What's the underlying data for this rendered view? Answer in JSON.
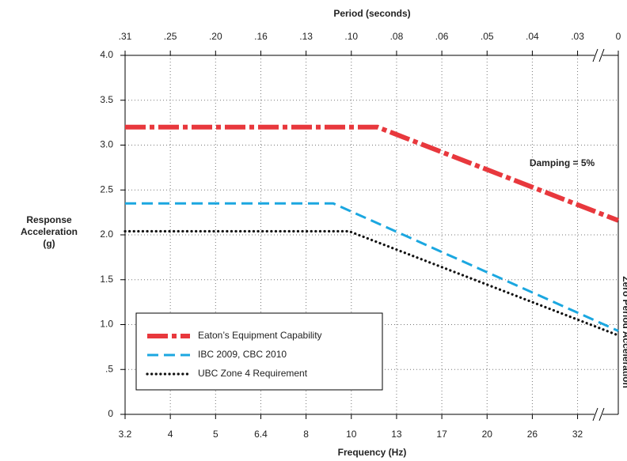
{
  "chart_data": {
    "type": "line",
    "top_axis_label": "Period (seconds)",
    "x_label": "Frequency (Hz)",
    "y_label_lines": [
      "Response",
      "Acceleration",
      "(g)"
    ],
    "annotation": "Damping = 5%",
    "right_axis_label": "Zero Period Acceleration",
    "xlim": [
      0,
      10.9
    ],
    "xticks": [
      {
        "value": 0,
        "label": "3.2"
      },
      {
        "value": 1,
        "label": "4"
      },
      {
        "value": 2,
        "label": "5"
      },
      {
        "value": 3,
        "label": "6.4"
      },
      {
        "value": 4,
        "label": "8"
      },
      {
        "value": 5,
        "label": "10"
      },
      {
        "value": 6,
        "label": "13"
      },
      {
        "value": 7,
        "label": "17"
      },
      {
        "value": 8,
        "label": "20"
      },
      {
        "value": 9,
        "label": "26"
      },
      {
        "value": 10,
        "label": "32"
      }
    ],
    "x2ticks": [
      {
        "value": 0,
        "label": ".31"
      },
      {
        "value": 1,
        "label": ".25"
      },
      {
        "value": 2,
        "label": ".20"
      },
      {
        "value": 3,
        "label": ".16"
      },
      {
        "value": 4,
        "label": ".13"
      },
      {
        "value": 5,
        "label": ".10"
      },
      {
        "value": 6,
        "label": ".08"
      },
      {
        "value": 7,
        "label": ".06"
      },
      {
        "value": 8,
        "label": ".05"
      },
      {
        "value": 9,
        "label": ".04"
      },
      {
        "value": 10,
        "label": ".03"
      },
      {
        "value": 10.9,
        "label": "0"
      }
    ],
    "ylim": [
      0,
      4
    ],
    "yticks": [
      0,
      {
        "value": 0.5,
        "label": ".5"
      },
      {
        "value": 1,
        "label": "1.0"
      },
      {
        "value": 1.5,
        "label": "1.5"
      },
      {
        "value": 2,
        "label": "2.0"
      },
      {
        "value": 2.5,
        "label": "2.5"
      },
      {
        "value": 3,
        "label": "3.0"
      },
      {
        "value": 3.5,
        "label": "3.5"
      },
      {
        "value": 4,
        "label": "4.0"
      }
    ],
    "grid": true,
    "legend": "lower left",
    "series": [
      {
        "name": "Eaton’s Equipment Capability",
        "color": "#e8383d",
        "style": "dashdot",
        "x": [
          0,
          5.58,
          10.9
        ],
        "values": [
          3.2,
          3.2,
          2.16
        ]
      },
      {
        "name": "IBC 2009, CBC 2010",
        "color": "#1ba7e0",
        "style": "dashed",
        "x": [
          0,
          4.6,
          10.9
        ],
        "values": [
          2.35,
          2.35,
          0.93
        ]
      },
      {
        "name": "UBC Zone 4 Requirement",
        "color": "#111111",
        "style": "dotted",
        "x": [
          0,
          4.95,
          10.9
        ],
        "values": [
          2.04,
          2.04,
          0.88
        ]
      }
    ]
  }
}
